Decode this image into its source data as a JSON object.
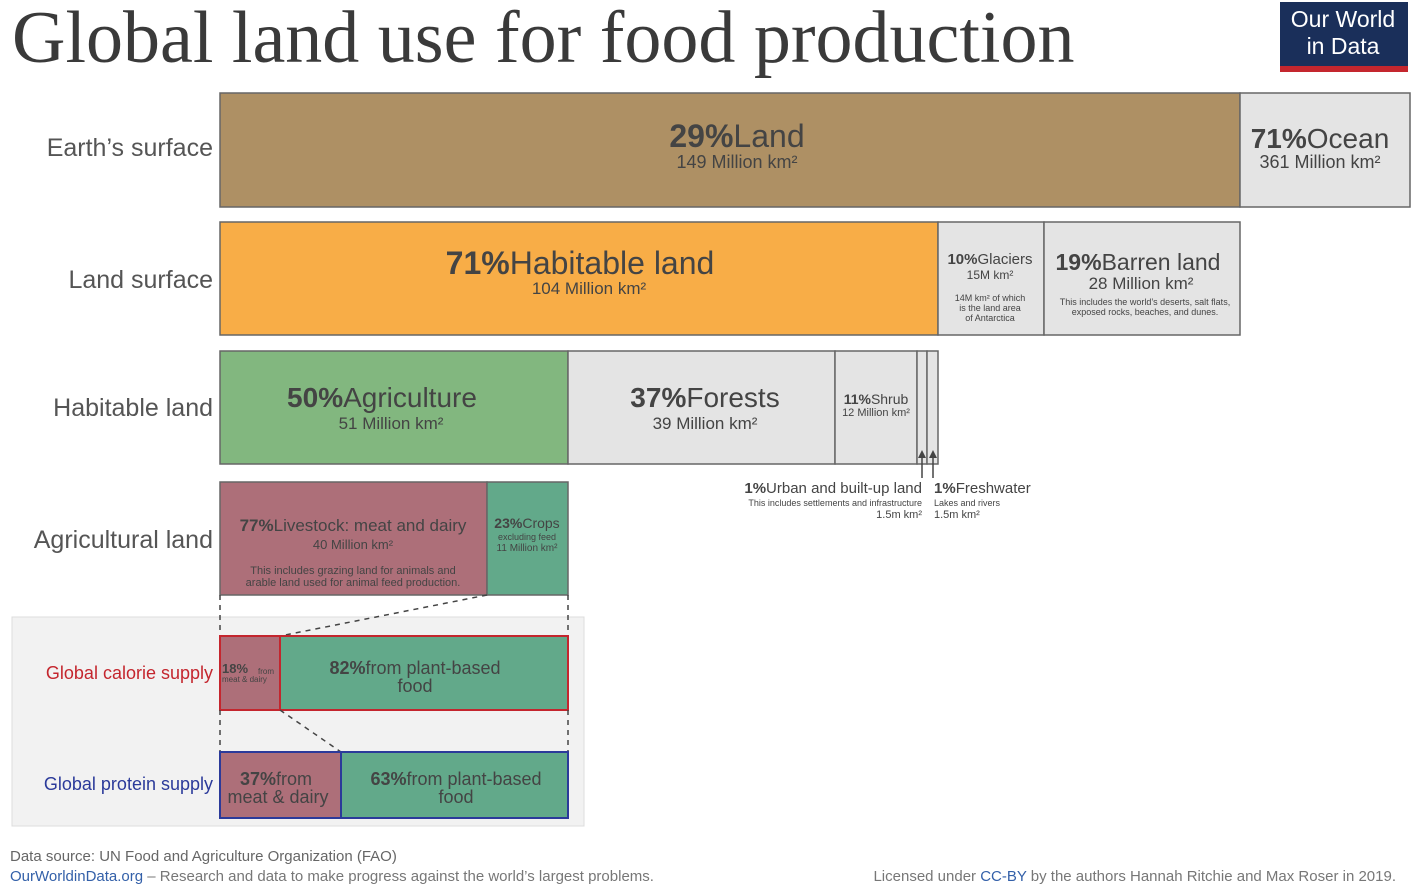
{
  "header": {
    "title": "Global land use for food production",
    "logo": [
      "Our World",
      "in Data"
    ]
  },
  "rows": [
    {
      "label": "Earth’s surface",
      "segments": [
        {
          "pct": "29%",
          "name": "Land",
          "size": "149 Million km²"
        },
        {
          "pct": "71%",
          "name": "Ocean",
          "size": "361 Million km²"
        }
      ]
    },
    {
      "label": "Land surface",
      "segments": [
        {
          "pct": "71%",
          "name": "Habitable land",
          "size": "104 Million km²"
        },
        {
          "pct": "10%",
          "name": "Glaciers",
          "size": "15M km²",
          "note": [
            "14M km² of which",
            "is the land area",
            "of Antarctica"
          ]
        },
        {
          "pct": "19%",
          "name": "Barren land",
          "size": "28 Million km²",
          "note": [
            "This includes the world’s deserts, salt flats,",
            "exposed rocks, beaches, and dunes."
          ]
        }
      ]
    },
    {
      "label": "Habitable land",
      "segments": [
        {
          "pct": "50%",
          "name": "Agriculture",
          "size": "51 Million km²"
        },
        {
          "pct": "37%",
          "name": "Forests",
          "size": "39 Million km²"
        },
        {
          "pct": "11%",
          "name": "Shrub",
          "size": "12 Million km²"
        },
        {
          "pct": "1%",
          "name": "Urban and built-up land",
          "note": [
            "This includes settlements and infrastructure"
          ],
          "size": "1.5m km²"
        },
        {
          "pct": "1%",
          "name": "Freshwater",
          "note": [
            "Lakes and rivers"
          ],
          "size": "1.5m km²"
        }
      ]
    },
    {
      "label": "Agricultural land",
      "segments": [
        {
          "pct": "77%",
          "name": "Livestock: meat and dairy",
          "size": "40 Million km²",
          "note": [
            "This includes grazing land for animals and",
            "arable land used for animal feed production."
          ]
        },
        {
          "pct": "23%",
          "name": "Crops",
          "note": [
            "excluding feed"
          ],
          "size": "11 Million km²"
        }
      ]
    },
    {
      "label": "Global calorie supply",
      "segments": [
        {
          "pct": "18%",
          "name": "from",
          "cont": "meat & dairy"
        },
        {
          "pct": "82%",
          "name": "from plant-based",
          "cont": "food"
        }
      ]
    },
    {
      "label": "Global protein supply",
      "segments": [
        {
          "pct": "37%",
          "name": "from",
          "cont": "meat & dairy"
        },
        {
          "pct": "63%",
          "name": "from plant-based",
          "cont": "food"
        }
      ]
    }
  ],
  "footer": {
    "source": "Data source: UN Food and Agriculture Organization (FAO)",
    "site": "OurWorldinData.org",
    "tagline": " – Research and data to make progress against the world’s largest problems.",
    "license": [
      "Licensed under ",
      "CC-BY",
      " by the authors Hannah Ritchie and Max Roser in 2019."
    ]
  }
}
